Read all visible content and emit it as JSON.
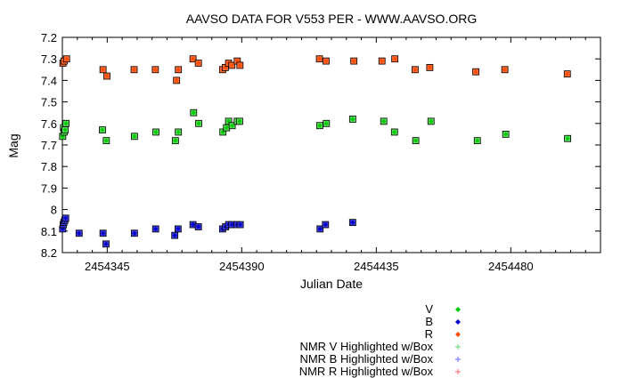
{
  "chart_data": {
    "type": "scatter",
    "title": "AAVSO DATA FOR V553 PER - WWW.AAVSO.ORG",
    "xlabel": "Julian Date",
    "ylabel": "Mag",
    "xlim": [
      2454330,
      2454510
    ],
    "ylim": [
      8.2,
      7.2
    ],
    "y_inverted": true,
    "x_ticks": [
      2454345,
      2454390,
      2454435,
      2454480
    ],
    "y_ticks": [
      7.2,
      7.3,
      7.4,
      7.5,
      7.6,
      7.7,
      7.8,
      7.9,
      8.0,
      8.1,
      8.2
    ],
    "y_tick_labels": [
      "7.2",
      "7.3",
      "7.4",
      "7.5",
      "7.6",
      "7.7",
      "7.8",
      "7.9",
      "8",
      "8.1",
      "8.2"
    ],
    "grid": false,
    "legend_placement": "below-right",
    "legend": [
      {
        "label": "V",
        "marker": "diamond",
        "color": "#00c800"
      },
      {
        "label": "B",
        "marker": "diamond",
        "color": "#0000c8"
      },
      {
        "label": "R",
        "marker": "diamond",
        "color": "#ff4d00"
      },
      {
        "label": "NMR V Highlighted w/Box",
        "marker": "plus",
        "color": "#66dd66"
      },
      {
        "label": "NMR B Highlighted w/Box",
        "marker": "plus",
        "color": "#6666ff"
      },
      {
        "label": "NMR R Highlighted w/Box",
        "marker": "plus",
        "color": "#ff6666"
      }
    ],
    "series": [
      {
        "name": "V",
        "color": "#00c800",
        "box_fill": "#55e055",
        "points": [
          [
            2454330.1,
            7.66
          ],
          [
            2454330.4,
            7.62
          ],
          [
            2454330.6,
            7.64
          ],
          [
            2454330.9,
            7.63
          ],
          [
            2454331.2,
            7.6
          ],
          [
            2454343.4,
            7.63
          ],
          [
            2454344.7,
            7.68
          ],
          [
            2454354.1,
            7.66
          ],
          [
            2454361.3,
            7.64
          ],
          [
            2454367.8,
            7.68
          ],
          [
            2454368.8,
            7.64
          ],
          [
            2454373.9,
            7.55
          ],
          [
            2454375.6,
            7.6
          ],
          [
            2454383.7,
            7.64
          ],
          [
            2454384.9,
            7.62
          ],
          [
            2454385.6,
            7.59
          ],
          [
            2454386.8,
            7.61
          ],
          [
            2454388.5,
            7.59
          ],
          [
            2454389.3,
            7.59
          ],
          [
            2454416.1,
            7.61
          ],
          [
            2454418.3,
            7.6
          ],
          [
            2454427.1,
            7.58
          ],
          [
            2454437.5,
            7.59
          ],
          [
            2454441.1,
            7.64
          ],
          [
            2454448.2,
            7.68
          ],
          [
            2454453.3,
            7.59
          ],
          [
            2454468.8,
            7.68
          ],
          [
            2454478.3,
            7.65
          ],
          [
            2454499.0,
            7.67
          ]
        ]
      },
      {
        "name": "B",
        "color": "#0000c8",
        "box_fill": "#3c3cdc",
        "points": [
          [
            2454330.1,
            8.09
          ],
          [
            2454330.3,
            8.07
          ],
          [
            2454330.5,
            8.06
          ],
          [
            2454330.8,
            8.05
          ],
          [
            2454331.1,
            8.04
          ],
          [
            2454335.6,
            8.11
          ],
          [
            2454343.6,
            8.11
          ],
          [
            2454344.6,
            8.16
          ],
          [
            2454354.1,
            8.11
          ],
          [
            2454361.2,
            8.09
          ],
          [
            2454367.6,
            8.12
          ],
          [
            2454368.7,
            8.09
          ],
          [
            2454373.7,
            8.07
          ],
          [
            2454375.5,
            8.08
          ],
          [
            2454383.6,
            8.09
          ],
          [
            2454384.6,
            8.08
          ],
          [
            2454385.6,
            8.07
          ],
          [
            2454386.7,
            8.07
          ],
          [
            2454388.4,
            8.07
          ],
          [
            2454389.5,
            8.07
          ],
          [
            2454416.2,
            8.09
          ],
          [
            2454418.0,
            8.07
          ],
          [
            2454427.1,
            8.06
          ]
        ]
      },
      {
        "name": "R",
        "color": "#ff4d00",
        "box_fill": "#ff6a33",
        "points": [
          [
            2454330.2,
            7.32
          ],
          [
            2454330.6,
            7.31
          ],
          [
            2454331.4,
            7.3
          ],
          [
            2454343.6,
            7.35
          ],
          [
            2454344.9,
            7.38
          ],
          [
            2454354.0,
            7.35
          ],
          [
            2454361.1,
            7.35
          ],
          [
            2454368.2,
            7.4
          ],
          [
            2454368.8,
            7.35
          ],
          [
            2454373.7,
            7.3
          ],
          [
            2454375.5,
            7.32
          ],
          [
            2454383.6,
            7.35
          ],
          [
            2454384.5,
            7.34
          ],
          [
            2454385.6,
            7.32
          ],
          [
            2454386.7,
            7.33
          ],
          [
            2454388.5,
            7.31
          ],
          [
            2454389.4,
            7.33
          ],
          [
            2454416.0,
            7.3
          ],
          [
            2454418.2,
            7.31
          ],
          [
            2454427.5,
            7.31
          ],
          [
            2454436.9,
            7.31
          ],
          [
            2454441.2,
            7.3
          ],
          [
            2454448.0,
            7.35
          ],
          [
            2454452.9,
            7.34
          ],
          [
            2454468.3,
            7.36
          ],
          [
            2454478.0,
            7.35
          ],
          [
            2454498.9,
            7.37
          ]
        ]
      }
    ]
  }
}
